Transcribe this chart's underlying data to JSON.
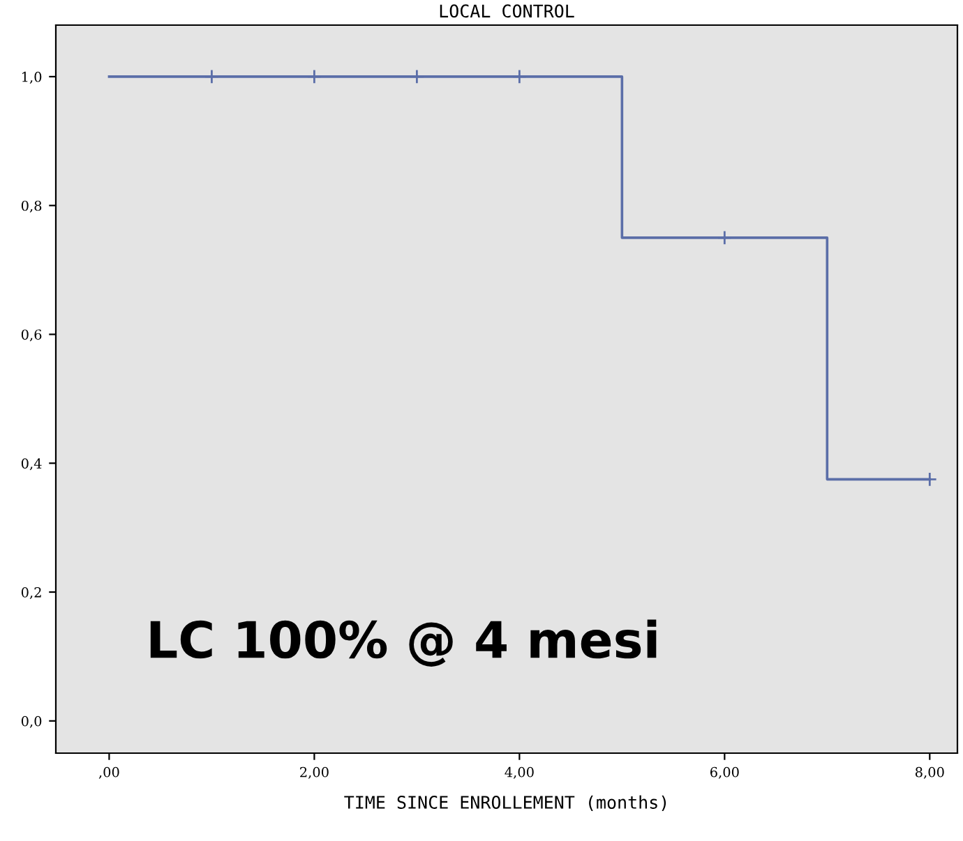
{
  "chart_data": {
    "type": "step",
    "title": "LOCAL CONTROL",
    "xlabel": "TIME SINCE ENROLLEMENT (months)",
    "series": [
      {
        "color": "#5b6ea8",
        "x": [
          0,
          5,
          7,
          8
        ],
        "values": [
          1.0,
          0.75,
          0.375,
          0.375
        ],
        "marker": "none"
      },
      {
        "type": "scatter",
        "color": "#5b6ea8",
        "x": [
          1,
          2,
          3,
          4,
          6,
          8
        ],
        "values": [
          1.0,
          1.0,
          1.0,
          1.0,
          0.75,
          0.375
        ],
        "marker": "cross"
      }
    ],
    "xlim": [
      -0.52,
      8.27
    ],
    "ylim": [
      -0.05,
      1.08
    ],
    "xticks": [
      {
        "value": 0,
        "label": ",00"
      },
      {
        "value": 2,
        "label": "2,00"
      },
      {
        "value": 4,
        "label": "4,00"
      },
      {
        "value": 6,
        "label": "6,00"
      },
      {
        "value": 8,
        "label": "8,00"
      }
    ],
    "yticks": [
      {
        "value": 0,
        "label": "0,0"
      },
      {
        "value": 0.2,
        "label": "0,2"
      },
      {
        "value": 0.4,
        "label": "0,4"
      },
      {
        "value": 0.6,
        "label": "0,6"
      },
      {
        "value": 0.8,
        "label": "0,8"
      },
      {
        "value": 1.0,
        "label": "1,0"
      }
    ],
    "annotations": [
      "LC 100% @ 4 mesi"
    ],
    "grid": false,
    "legend": false
  }
}
